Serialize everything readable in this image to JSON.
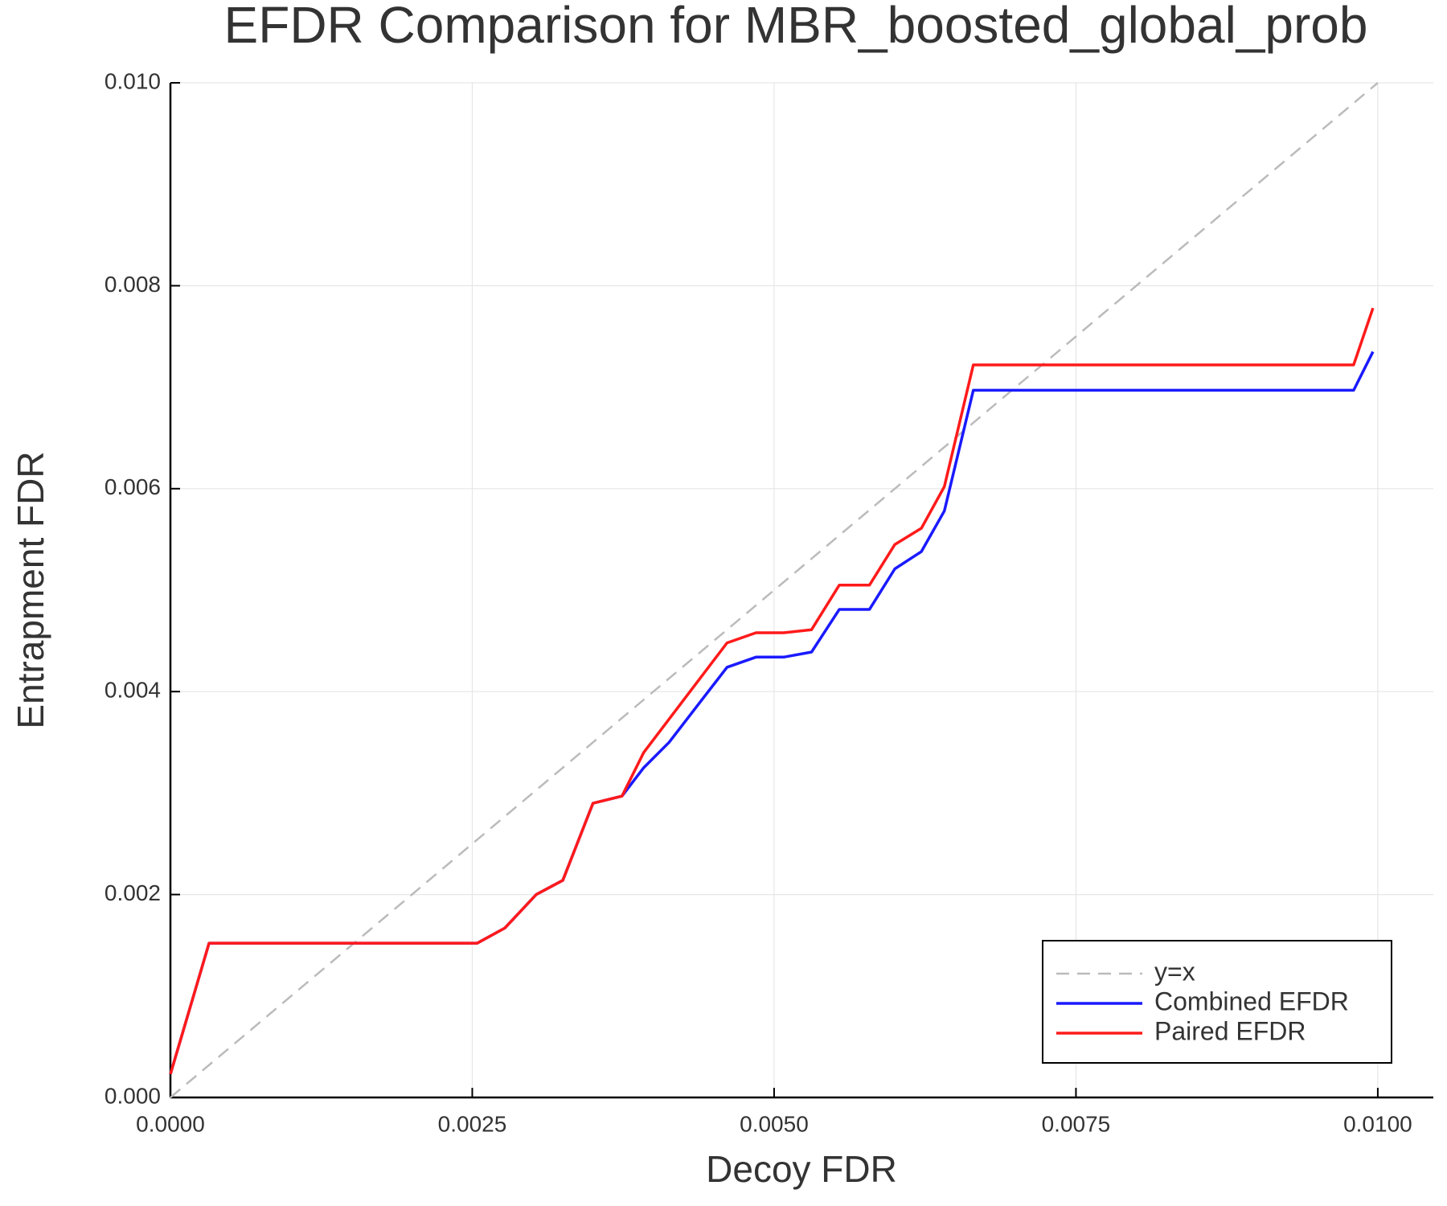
{
  "chart_data": {
    "type": "line",
    "title": "EFDR Comparison for MBR_boosted_global_prob",
    "x_label": "Decoy FDR",
    "y_label": "Entrapment FDR",
    "xlim": [
      0,
      0.01046
    ],
    "ylim": [
      0,
      0.01
    ],
    "xticks": [
      {
        "value": 0,
        "label": "0.0000"
      },
      {
        "value": 0.0025,
        "label": "0.0025"
      },
      {
        "value": 0.005,
        "label": "0.0050"
      },
      {
        "value": 0.0075,
        "label": "0.0075"
      },
      {
        "value": 0.01,
        "label": "0.0100"
      }
    ],
    "yticks": [
      {
        "value": 0,
        "label": "0.000"
      },
      {
        "value": 0.002,
        "label": "0.002"
      },
      {
        "value": 0.004,
        "label": "0.004"
      },
      {
        "value": 0.006,
        "label": "0.006"
      },
      {
        "value": 0.008,
        "label": "0.008"
      },
      {
        "value": 0.01,
        "label": "0.010"
      }
    ],
    "grid": true,
    "legend": "bottom right",
    "series": [
      {
        "name": "y=x",
        "color": "#bbbbbb",
        "dashed": true,
        "x": [
          0,
          0.01
        ],
        "values": [
          0,
          0.01
        ]
      },
      {
        "name": "Combined EFDR",
        "color": "#1a1aff",
        "x": [
          0,
          0.00032,
          0.00254,
          0.00277,
          0.00303,
          0.00325,
          0.0035,
          0.00374,
          0.00392,
          0.00413,
          0.00461,
          0.00485,
          0.00508,
          0.00531,
          0.00554,
          0.00579,
          0.006,
          0.00622,
          0.00641,
          0.00665,
          0.0098,
          0.00996
        ],
        "values": [
          0.00023,
          0.00152,
          0.00152,
          0.00167,
          0.002,
          0.00214,
          0.0029,
          0.00297,
          0.00325,
          0.0035,
          0.00424,
          0.00434,
          0.00434,
          0.00439,
          0.00481,
          0.00481,
          0.00521,
          0.00538,
          0.00578,
          0.00697,
          0.00697,
          0.00735
        ]
      },
      {
        "name": "Paired EFDR",
        "color": "#ff1a1a",
        "x": [
          0,
          0.00032,
          0.00254,
          0.00277,
          0.00303,
          0.00325,
          0.0035,
          0.00374,
          0.00392,
          0.00461,
          0.00485,
          0.00508,
          0.00531,
          0.00554,
          0.00579,
          0.006,
          0.00622,
          0.00641,
          0.00665,
          0.0098,
          0.00996
        ],
        "values": [
          0.00023,
          0.00152,
          0.00152,
          0.00167,
          0.002,
          0.00214,
          0.0029,
          0.00297,
          0.0034,
          0.00448,
          0.00458,
          0.00458,
          0.00461,
          0.00505,
          0.00505,
          0.00545,
          0.00561,
          0.00602,
          0.00722,
          0.00722,
          0.00778
        ]
      }
    ]
  }
}
